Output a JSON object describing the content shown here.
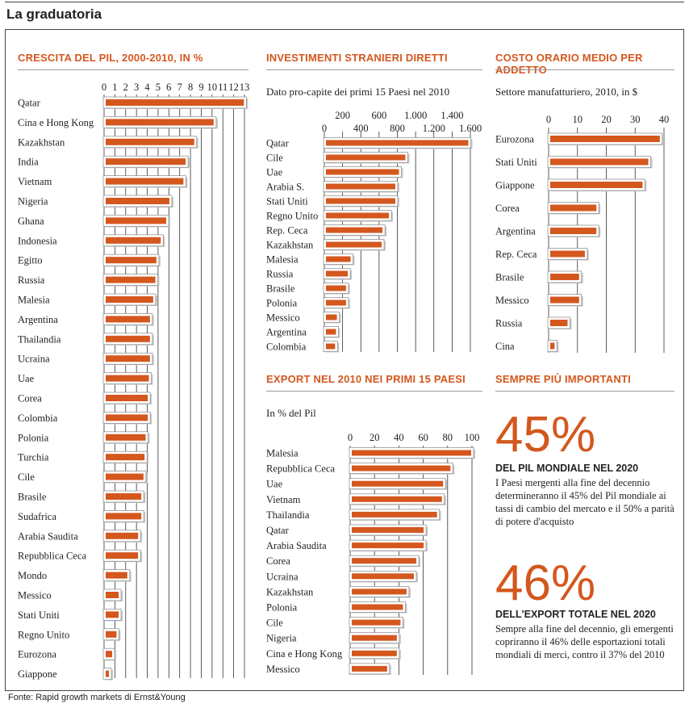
{
  "page": {
    "title": "La graduatoria",
    "footer": "Fonte: Rapid growth markets di Ernst&Young"
  },
  "colors": {
    "accent": "#d4571e",
    "bar": "#d4571e",
    "bar_shadow": "#c9c9c9",
    "grid": "#333333"
  },
  "sections": {
    "pil": {
      "title": "CRESCITA DEL PIL, 2000-2010, IN %"
    },
    "fdi": {
      "title": "INVESTIMENTI STRANIERI DIRETTI",
      "subtitle": "Dato pro-capite dei primi 15 Paesi nel 2010"
    },
    "cost": {
      "title": "COSTO ORARIO MEDIO PER ADDETTO",
      "subtitle": "Settore manufatturiero, 2010, in $"
    },
    "export": {
      "title": "EXPORT NEL 2010 NEI PRIMI 15 PAESI",
      "subtitle": "In % del Pil"
    },
    "important": {
      "title": "SEMPRE PIÙ IMPORTANTI"
    }
  },
  "highlights": [
    {
      "value": "45%",
      "heading": "DEL PIL MONDIALE NEL 2020",
      "text": "I Paesi mergenti alla fine del decennio determineranno il 45% del Pil mondiale ai tassi di cambio del mercato e il 50% a parità di potere d'acquisto"
    },
    {
      "value": "46%",
      "heading": "DELL'EXPORT TOTALE NEL 2020",
      "text": "Sempre alla fine del decennio, gli emergenti copriranno il 46% delle esportazioni totali mondiali di merci, contro il 37% del 2010"
    }
  ],
  "chart_data": [
    {
      "id": "pil",
      "type": "bar",
      "orientation": "horizontal",
      "title": "CRESCITA DEL PIL, 2000-2010, IN %",
      "xlim": [
        0,
        13
      ],
      "ticks": [
        0,
        1,
        2,
        3,
        4,
        5,
        6,
        7,
        8,
        9,
        10,
        11,
        12,
        13
      ],
      "tick_labels": [
        "0",
        "1",
        "2",
        "3",
        "4",
        "5",
        "6",
        "7",
        "8",
        "9",
        "10",
        "11",
        "12",
        "13"
      ],
      "grid": true,
      "categories": [
        "Qatar",
        "Cina e Hong Kong",
        "Kazakhstan",
        "India",
        "Vietnam",
        "Nigeria",
        "Ghana",
        "Indonesia",
        "Egitto",
        "Russia",
        "Malesia",
        "Argentina",
        "Thailandia",
        "Ucraina",
        "Uae",
        "Corea",
        "Colombia",
        "Polonia",
        "Turchia",
        "Cile",
        "Brasile",
        "Sudafrica",
        "Arabia Saudita",
        "Repubblica Ceca",
        "Mondo",
        "Messico",
        "Stati Uniti",
        "Regno Unito",
        "Eurozona",
        "Giappone"
      ],
      "values": [
        12.8,
        10,
        8.2,
        7.4,
        7.2,
        5.9,
        5.6,
        5.1,
        4.7,
        4.6,
        4.4,
        4.1,
        4.1,
        4.1,
        4.0,
        3.9,
        3.9,
        3.7,
        3.6,
        3.5,
        3.3,
        3.3,
        3.0,
        3.0,
        2.0,
        1.2,
        1.2,
        1.0,
        0.6,
        0.3
      ]
    },
    {
      "id": "fdi",
      "type": "bar",
      "orientation": "horizontal",
      "title": "INVESTIMENTI STRANIERI DIRETTI",
      "xlim": [
        0,
        1600
      ],
      "ticks": [
        0,
        200,
        400,
        600,
        800,
        1000,
        1200,
        1400,
        1600
      ],
      "tick_labels": [
        "0",
        "200",
        "400",
        "600",
        "800",
        "1.000",
        "1.200",
        "1.400",
        "1.600"
      ],
      "grid": true,
      "categories": [
        "Qatar",
        "Cile",
        "Uae",
        "Arabia S.",
        "Stati Uniti",
        "Regno Unito",
        "Rep. Ceca",
        "Kazakhstan",
        "Malesia",
        "Russia",
        "Brasile",
        "Polonia",
        "Messico",
        "Argentina",
        "Colombia"
      ],
      "values": [
        1560,
        870,
        800,
        760,
        760,
        690,
        620,
        610,
        270,
        240,
        220,
        220,
        120,
        110,
        100
      ]
    },
    {
      "id": "cost",
      "type": "bar",
      "orientation": "horizontal",
      "title": "COSTO ORARIO MEDIO PER ADDETTO",
      "xlim": [
        0,
        40
      ],
      "ticks": [
        0,
        10,
        20,
        30,
        40
      ],
      "tick_labels": [
        "0",
        "10",
        "20",
        "30",
        "40"
      ],
      "grid": true,
      "categories": [
        "Eurozona",
        "Stati Uniti",
        "Giappone",
        "Corea",
        "Argentina",
        "Rep. Ceca",
        "Brasile",
        "Messico",
        "Russia",
        "Cina"
      ],
      "values": [
        38,
        34,
        32,
        16,
        16,
        12,
        10,
        10,
        6,
        1.5
      ]
    },
    {
      "id": "export",
      "type": "bar",
      "orientation": "horizontal",
      "title": "EXPORT NEL 2010 NEI PRIMI 15 PAESI",
      "xlim": [
        0,
        100
      ],
      "ticks": [
        0,
        20,
        40,
        60,
        80,
        100
      ],
      "tick_labels": [
        "0",
        "20",
        "40",
        "60",
        "80",
        "100"
      ],
      "grid": true,
      "categories": [
        "Malesia",
        "Repubblica Ceca",
        "Uae",
        "Vietnam",
        "Thailandia",
        "Qatar",
        "Arabia Saudita",
        "Corea",
        "Ucraina",
        "Kazakhstan",
        "Polonia",
        "Cile",
        "Nigeria",
        "Cina e Hong Kong",
        "Messico"
      ],
      "values": [
        98,
        81,
        75,
        74,
        70,
        59,
        59,
        53,
        51,
        45,
        42,
        40,
        37,
        37,
        29
      ]
    }
  ]
}
